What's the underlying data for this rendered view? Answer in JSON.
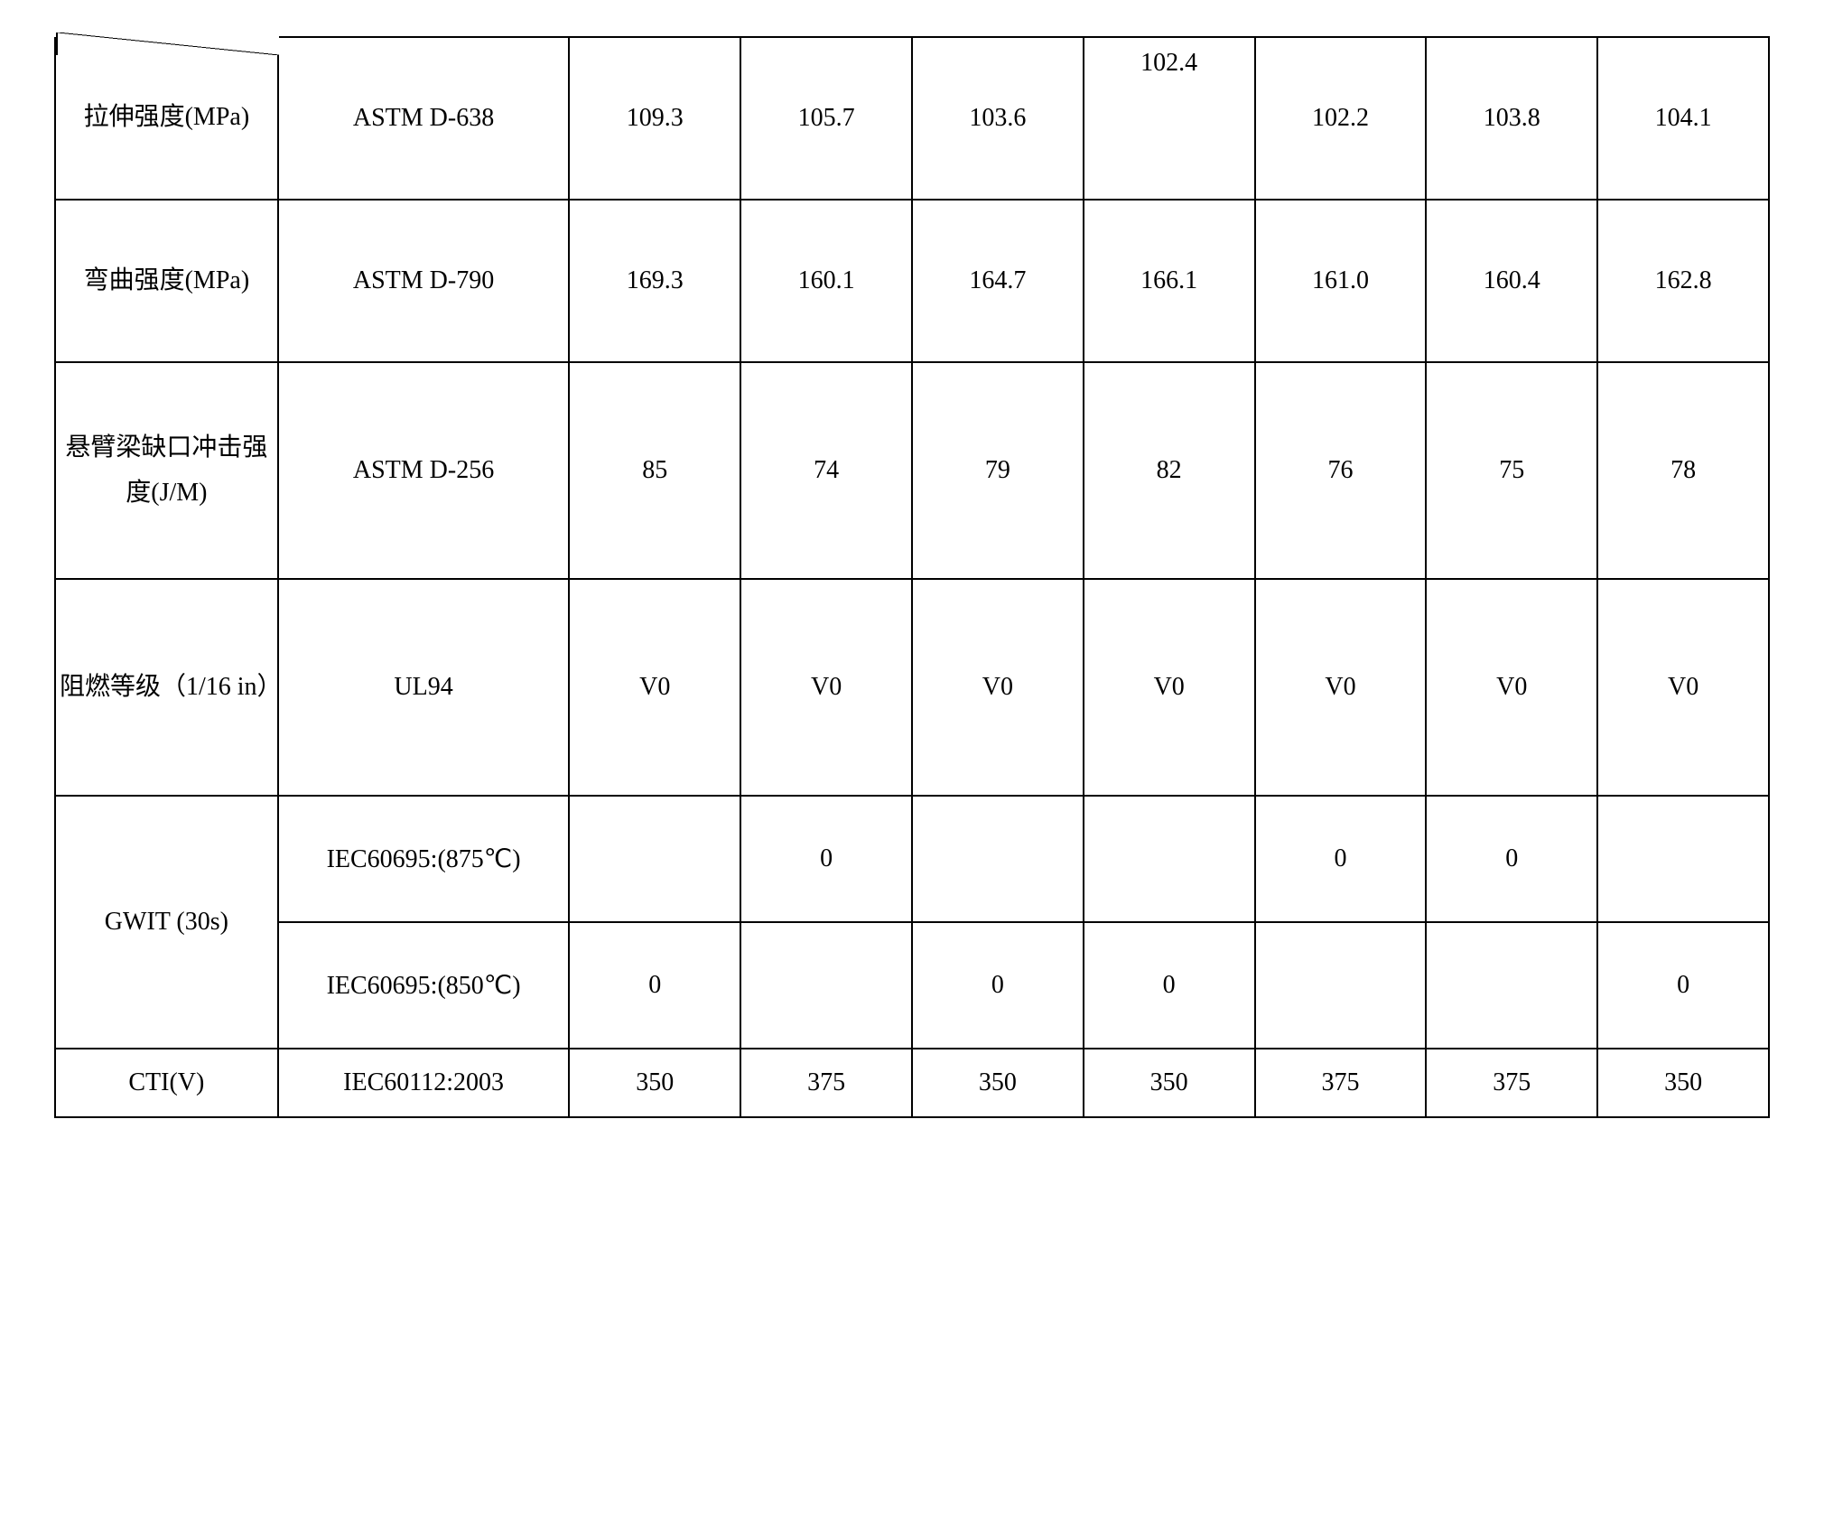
{
  "table": {
    "columns": {
      "property_width": "13%",
      "standard_width": "17%",
      "data_width": "10%"
    },
    "styling": {
      "border_color": "#000000",
      "border_width": 2,
      "background_color": "#ffffff",
      "text_color": "#000000",
      "font_family": "Times New Roman, SimSun, serif",
      "base_fontsize": 28
    },
    "rows": [
      {
        "property": "拉伸强度(MPa)",
        "standard": "ASTM D-638",
        "values": [
          "109.3",
          "105.7",
          "103.6",
          "102.4",
          "102.2",
          "103.8",
          "104.1"
        ],
        "height_class": "tall-row",
        "has_diagonal": true
      },
      {
        "property": "弯曲强度(MPa)",
        "standard": "ASTM D-790",
        "values": [
          "169.3",
          "160.1",
          "164.7",
          "166.1",
          "161.0",
          "160.4",
          "162.8"
        ],
        "height_class": "tall-row"
      },
      {
        "property": "悬臂梁缺口冲击强度(J/M)",
        "standard": "ASTM D-256",
        "values": [
          "85",
          "74",
          "79",
          "82",
          "76",
          "75",
          "78"
        ],
        "height_class": "taller-row"
      },
      {
        "property": "阻燃等级（1/16 in）",
        "standard": "UL94",
        "values": [
          "V0",
          "V0",
          "V0",
          "V0",
          "V0",
          "V0",
          "V0"
        ],
        "height_class": "taller-row"
      },
      {
        "property": "GWIT (30s)",
        "rowspan": 2,
        "sub_rows": [
          {
            "standard": "IEC60695:(875℃)",
            "values": [
              "",
              "0",
              "",
              "",
              "0",
              "0",
              ""
            ],
            "height_class": "medium-row"
          },
          {
            "standard": "IEC60695:(850℃)",
            "values": [
              "0",
              "",
              "0",
              "0",
              "",
              "",
              "0"
            ],
            "height_class": "medium-row"
          }
        ]
      },
      {
        "property": "CTI(V)",
        "standard": "IEC60112:2003",
        "values": [
          "350",
          "375",
          "350",
          "350",
          "375",
          "375",
          "350"
        ],
        "height_class": "short-row"
      }
    ]
  }
}
